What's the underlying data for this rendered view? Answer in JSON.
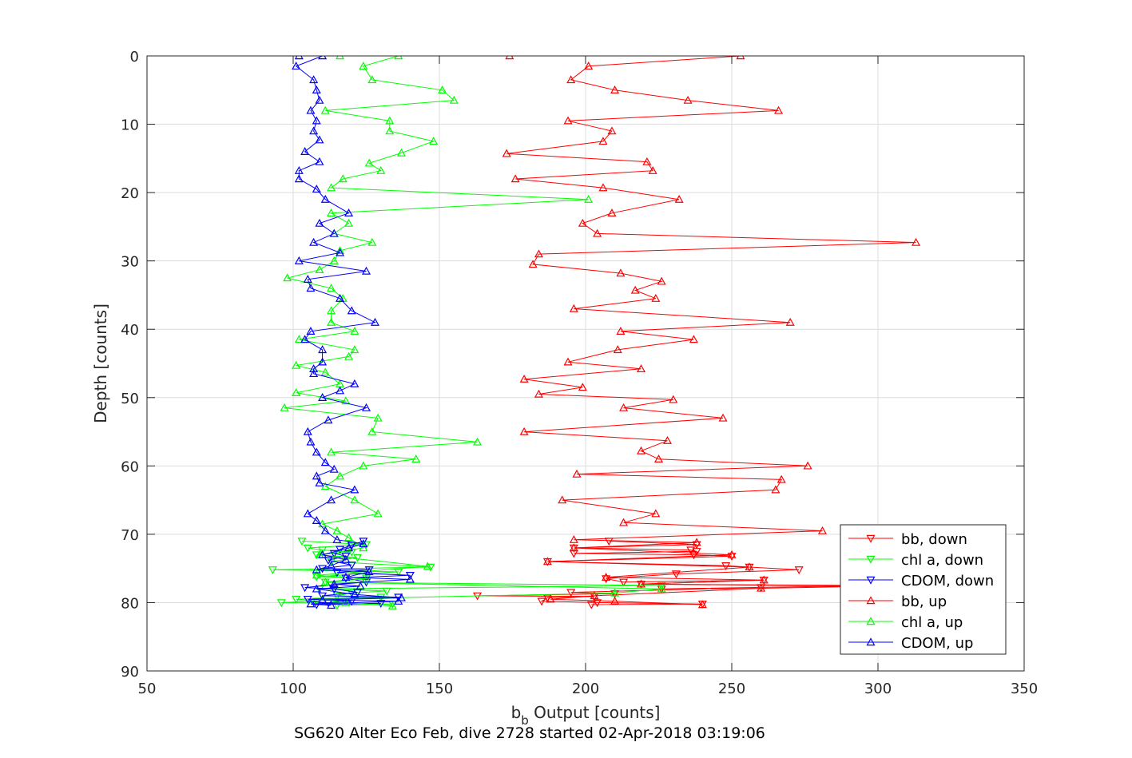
{
  "chart_data": {
    "type": "line",
    "title": "",
    "xlabel_main": "b",
    "xlabel_sub": "b",
    "xlabel_rest": " Output [counts]",
    "ylabel": "Depth [counts]",
    "caption": "SG620 Alter Eco Feb, dive 2728 started 02-Apr-2018 03:19:06",
    "xlim": [
      50,
      350
    ],
    "ylim": [
      0,
      90
    ],
    "y_reversed": true,
    "grid": true,
    "legend_position": "lower-right",
    "x_ticks": [
      50,
      100,
      150,
      200,
      250,
      300,
      350
    ],
    "y_ticks": [
      0,
      10,
      20,
      30,
      40,
      50,
      60,
      70,
      80,
      90
    ],
    "series": [
      {
        "name": "bb, down",
        "color": "#ff0000",
        "marker": "triangle-down",
        "points": [
          [
            208,
            71
          ],
          [
            238,
            71.5
          ],
          [
            196,
            72
          ],
          [
            236,
            72.3
          ],
          [
            238,
            72.5
          ],
          [
            196,
            72.8
          ],
          [
            237,
            73
          ],
          [
            250,
            73.2
          ],
          [
            187,
            74
          ],
          [
            248,
            74.6
          ],
          [
            256,
            74.8
          ],
          [
            273,
            75.2
          ],
          [
            231,
            75.8
          ],
          [
            207,
            76.5
          ],
          [
            213,
            77
          ],
          [
            261,
            76.7
          ],
          [
            219,
            77.3
          ],
          [
            301,
            77.5
          ],
          [
            226,
            78
          ],
          [
            260,
            77.8
          ],
          [
            195,
            78.5
          ],
          [
            210,
            78.7
          ],
          [
            163,
            79
          ],
          [
            203,
            79.1
          ],
          [
            187,
            79.3
          ],
          [
            185,
            79.8
          ],
          [
            204,
            80
          ],
          [
            240,
            80.2
          ],
          [
            202,
            80.3
          ]
        ]
      },
      {
        "name": "chl a, down",
        "color": "#00ff00",
        "marker": "triangle-down",
        "points": [
          [
            103,
            71
          ],
          [
            125,
            71.5
          ],
          [
            105,
            72
          ],
          [
            110,
            72.3
          ],
          [
            120,
            72.6
          ],
          [
            108,
            73
          ],
          [
            122,
            73.4
          ],
          [
            113,
            74
          ],
          [
            147,
            74.8
          ],
          [
            93,
            75.2
          ],
          [
            136,
            75.5
          ],
          [
            108,
            76.2
          ],
          [
            125,
            76.4
          ],
          [
            111,
            77
          ],
          [
            226,
            77.5
          ],
          [
            109,
            78
          ],
          [
            132,
            78.3
          ],
          [
            120,
            78.6
          ],
          [
            115,
            79
          ],
          [
            130,
            79.2
          ],
          [
            101,
            79.5
          ],
          [
            108,
            79.8
          ],
          [
            96,
            80
          ],
          [
            134,
            80.2
          ],
          [
            115,
            80.4
          ]
        ]
      },
      {
        "name": "CDOM, down",
        "color": "#0000ff",
        "marker": "triangle-down",
        "points": [
          [
            124,
            71
          ],
          [
            120,
            71.6
          ],
          [
            116,
            72.2
          ],
          [
            114,
            72.8
          ],
          [
            118,
            73.2
          ],
          [
            112,
            73.8
          ],
          [
            120,
            74.5
          ],
          [
            110,
            75
          ],
          [
            126,
            75.2
          ],
          [
            115,
            75.6
          ],
          [
            140,
            76
          ],
          [
            118,
            76.4
          ],
          [
            125,
            77
          ],
          [
            113,
            77.4
          ],
          [
            104,
            77.8
          ],
          [
            114,
            78
          ],
          [
            122,
            78.5
          ],
          [
            110,
            79
          ],
          [
            136,
            79.2
          ],
          [
            105,
            79.5
          ],
          [
            120,
            79.8
          ],
          [
            112,
            80
          ],
          [
            108,
            80.3
          ],
          [
            130,
            80.1
          ]
        ]
      },
      {
        "name": "bb, up",
        "color": "#ff0000",
        "marker": "triangle-up",
        "points": [
          [
            174,
            0
          ],
          [
            253,
            0
          ],
          [
            201,
            1.5
          ],
          [
            195,
            3.5
          ],
          [
            210,
            5
          ],
          [
            235,
            6.5
          ],
          [
            266,
            8
          ],
          [
            194,
            9.5
          ],
          [
            209,
            11
          ],
          [
            206,
            12.5
          ],
          [
            173,
            14.3
          ],
          [
            221,
            15.5
          ],
          [
            223,
            16.8
          ],
          [
            176,
            18
          ],
          [
            206,
            19.3
          ],
          [
            232,
            21
          ],
          [
            209,
            23
          ],
          [
            199,
            24.5
          ],
          [
            204,
            26
          ],
          [
            313,
            27.3
          ],
          [
            184,
            29
          ],
          [
            182,
            30.5
          ],
          [
            212,
            31.8
          ],
          [
            226,
            33
          ],
          [
            217,
            34.3
          ],
          [
            224,
            35.5
          ],
          [
            196,
            37
          ],
          [
            270,
            39
          ],
          [
            212,
            40.3
          ],
          [
            237,
            41.5
          ],
          [
            211,
            43
          ],
          [
            194,
            44.8
          ],
          [
            219,
            45.8
          ],
          [
            179,
            47.3
          ],
          [
            199,
            48.5
          ],
          [
            184,
            49.5
          ],
          [
            230,
            50.3
          ],
          [
            213,
            51.5
          ],
          [
            247,
            53
          ],
          [
            179,
            55
          ],
          [
            228,
            56.3
          ],
          [
            219,
            57.8
          ],
          [
            225,
            59
          ],
          [
            276,
            60
          ],
          [
            197,
            61.2
          ],
          [
            267,
            62
          ],
          [
            265,
            63.5
          ],
          [
            192,
            65
          ],
          [
            224,
            67
          ],
          [
            213,
            68.3
          ],
          [
            281,
            69.5
          ],
          [
            196,
            70.8
          ],
          [
            238,
            71.2
          ],
          [
            196,
            72
          ],
          [
            250,
            73
          ],
          [
            187,
            74
          ],
          [
            256,
            74.8
          ],
          [
            207,
            76.3
          ],
          [
            261,
            76.7
          ],
          [
            219,
            77.3
          ],
          [
            300,
            77.6
          ],
          [
            260,
            77.9
          ],
          [
            203,
            79
          ],
          [
            188,
            79.5
          ],
          [
            210,
            79.8
          ],
          [
            240,
            80.3
          ]
        ]
      },
      {
        "name": "chl a, up",
        "color": "#00ff00",
        "marker": "triangle-up",
        "points": [
          [
            116,
            0
          ],
          [
            136,
            0
          ],
          [
            124,
            1.5
          ],
          [
            127,
            3.5
          ],
          [
            151,
            5
          ],
          [
            155,
            6.5
          ],
          [
            111,
            8
          ],
          [
            133,
            9.5
          ],
          [
            133,
            11
          ],
          [
            148,
            12.5
          ],
          [
            137,
            14.2
          ],
          [
            126,
            15.7
          ],
          [
            130,
            16.8
          ],
          [
            117,
            18
          ],
          [
            113,
            19.3
          ],
          [
            201,
            21
          ],
          [
            113,
            23
          ],
          [
            119,
            24.5
          ],
          [
            114,
            26
          ],
          [
            127,
            27.3
          ],
          [
            116,
            28.5
          ],
          [
            114,
            30
          ],
          [
            109,
            31.3
          ],
          [
            98,
            32.5
          ],
          [
            113,
            34
          ],
          [
            117,
            35.5
          ],
          [
            113,
            37.3
          ],
          [
            113,
            39
          ],
          [
            121,
            40.3
          ],
          [
            102,
            41.5
          ],
          [
            121,
            43
          ],
          [
            119,
            44
          ],
          [
            101,
            45.3
          ],
          [
            111,
            46.3
          ],
          [
            116,
            48
          ],
          [
            101,
            49.3
          ],
          [
            118,
            50.5
          ],
          [
            97,
            51.5
          ],
          [
            129,
            53
          ],
          [
            127,
            55
          ],
          [
            163,
            56.5
          ],
          [
            113,
            58
          ],
          [
            142,
            59
          ],
          [
            124,
            60
          ],
          [
            116,
            61.5
          ],
          [
            111,
            63
          ],
          [
            121,
            65
          ],
          [
            129,
            67
          ],
          [
            110,
            68.5
          ],
          [
            115,
            69.5
          ],
          [
            119,
            70.5
          ],
          [
            124,
            72
          ],
          [
            109,
            73
          ],
          [
            146,
            74.7
          ],
          [
            108,
            76
          ],
          [
            125,
            76.5
          ],
          [
            111,
            77
          ],
          [
            226,
            78
          ],
          [
            210,
            78.6
          ],
          [
            110,
            79.5
          ],
          [
            118,
            80
          ],
          [
            134,
            80.5
          ]
        ]
      },
      {
        "name": "CDOM, up",
        "color": "#0000ff",
        "marker": "triangle-up",
        "points": [
          [
            102,
            0
          ],
          [
            110,
            0
          ],
          [
            101,
            1.5
          ],
          [
            107,
            3.5
          ],
          [
            108,
            5
          ],
          [
            109,
            6.5
          ],
          [
            106,
            8
          ],
          [
            108,
            9.5
          ],
          [
            107,
            11
          ],
          [
            109,
            12.3
          ],
          [
            104,
            14
          ],
          [
            109,
            15.5
          ],
          [
            102,
            16.8
          ],
          [
            102,
            18
          ],
          [
            108,
            19.5
          ],
          [
            111,
            21
          ],
          [
            119,
            23
          ],
          [
            109,
            24.5
          ],
          [
            114,
            26
          ],
          [
            107,
            27.3
          ],
          [
            116,
            28.8
          ],
          [
            102,
            30
          ],
          [
            125,
            31.5
          ],
          [
            105,
            32.7
          ],
          [
            106,
            34
          ],
          [
            116,
            35.5
          ],
          [
            120,
            37.3
          ],
          [
            128,
            39
          ],
          [
            106,
            40.3
          ],
          [
            104,
            41.5
          ],
          [
            110,
            43
          ],
          [
            110,
            44.8
          ],
          [
            107,
            45.8
          ],
          [
            107,
            46.5
          ],
          [
            121,
            48
          ],
          [
            116,
            49
          ],
          [
            110,
            50
          ],
          [
            125,
            51.5
          ],
          [
            112,
            53.3
          ],
          [
            105,
            55
          ],
          [
            106,
            56.5
          ],
          [
            108,
            58
          ],
          [
            111,
            59.5
          ],
          [
            114,
            60.5
          ],
          [
            108,
            61.5
          ],
          [
            109,
            62.5
          ],
          [
            121,
            63.5
          ],
          [
            113,
            65
          ],
          [
            105,
            67
          ],
          [
            108,
            68
          ],
          [
            111,
            69.5
          ],
          [
            115,
            70.8
          ],
          [
            124,
            71.4
          ],
          [
            119,
            72
          ],
          [
            110,
            73
          ],
          [
            118,
            73.7
          ],
          [
            113,
            74.6
          ],
          [
            108,
            75.2
          ],
          [
            126,
            75.5
          ],
          [
            118,
            76.3
          ],
          [
            140,
            76.6
          ],
          [
            114,
            77.3
          ],
          [
            123,
            77.6
          ],
          [
            108,
            78
          ],
          [
            121,
            78.8
          ],
          [
            137,
            79.3
          ],
          [
            110,
            79.6
          ],
          [
            136,
            79.8
          ],
          [
            106,
            80.2
          ],
          [
            113,
            80.4
          ]
        ]
      }
    ]
  }
}
